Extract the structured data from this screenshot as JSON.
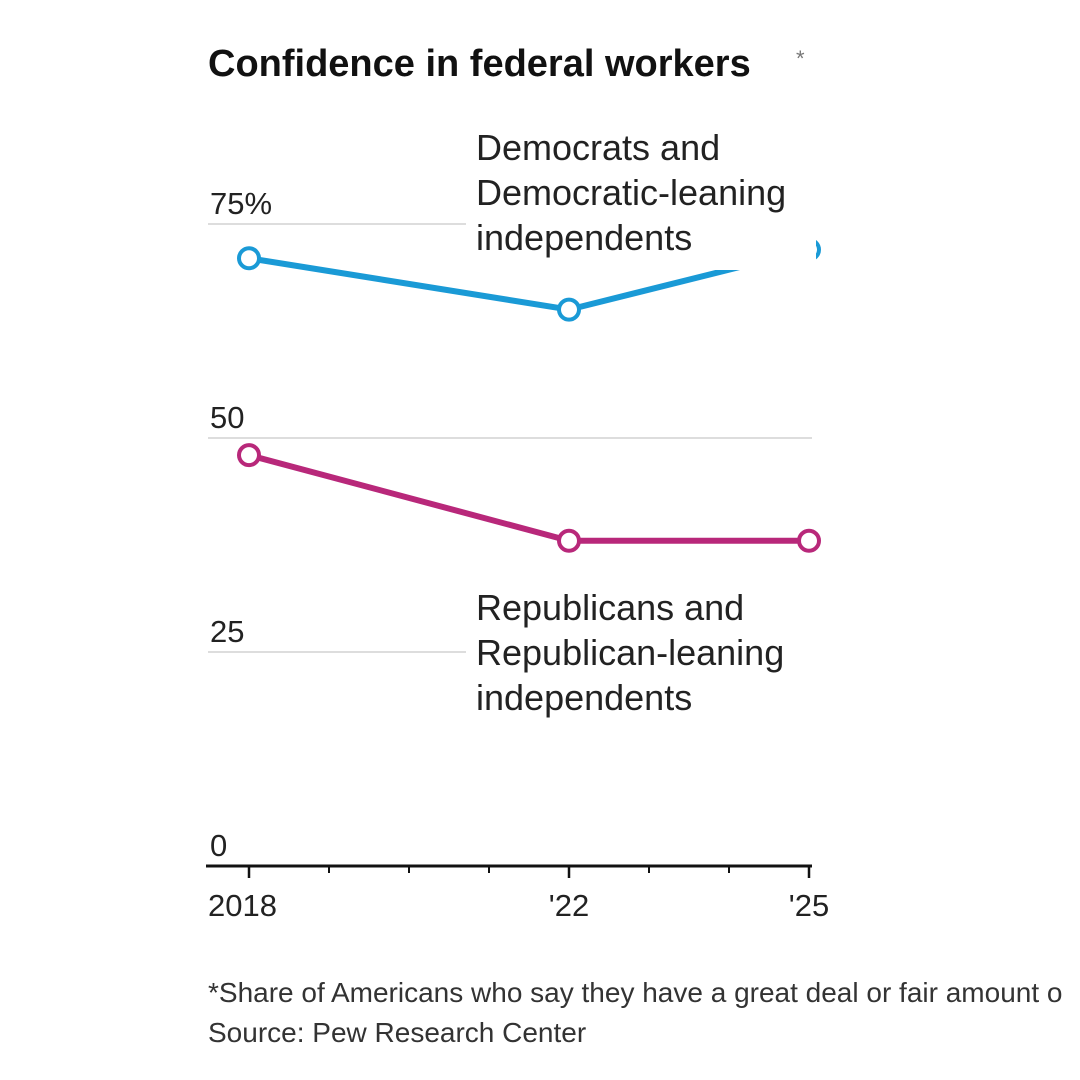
{
  "chart_data": {
    "type": "line",
    "title": "Confidence in federal workers",
    "title_marker": "*",
    "x": [
      2018,
      2022,
      2025
    ],
    "x_tick_labels": [
      "2018",
      "'22",
      "'25"
    ],
    "x_range": [
      2018,
      2025
    ],
    "minor_ticks_every_year": true,
    "ylim": [
      0,
      75
    ],
    "y_ticks": [
      0,
      25,
      50,
      75
    ],
    "y_tick_labels": [
      "0",
      "25",
      "50",
      "75%"
    ],
    "grid": "horizontal",
    "series": [
      {
        "name": "Democrats and Democratic-leaning independents",
        "label_lines": [
          "Democrats and",
          "Democratic-leaning",
          "independents"
        ],
        "color": "#1a9ad6",
        "values": [
          71,
          65,
          72
        ]
      },
      {
        "name": "Republicans and Republican-leaning independents",
        "label_lines": [
          "Republicans and",
          "Republican-leaning",
          "independents"
        ],
        "color": "#b8287a",
        "values": [
          48,
          38,
          38
        ]
      }
    ],
    "footnote": "*Share of Americans who say they have a great deal or fair amount o",
    "source": "Source: Pew Research Center"
  }
}
